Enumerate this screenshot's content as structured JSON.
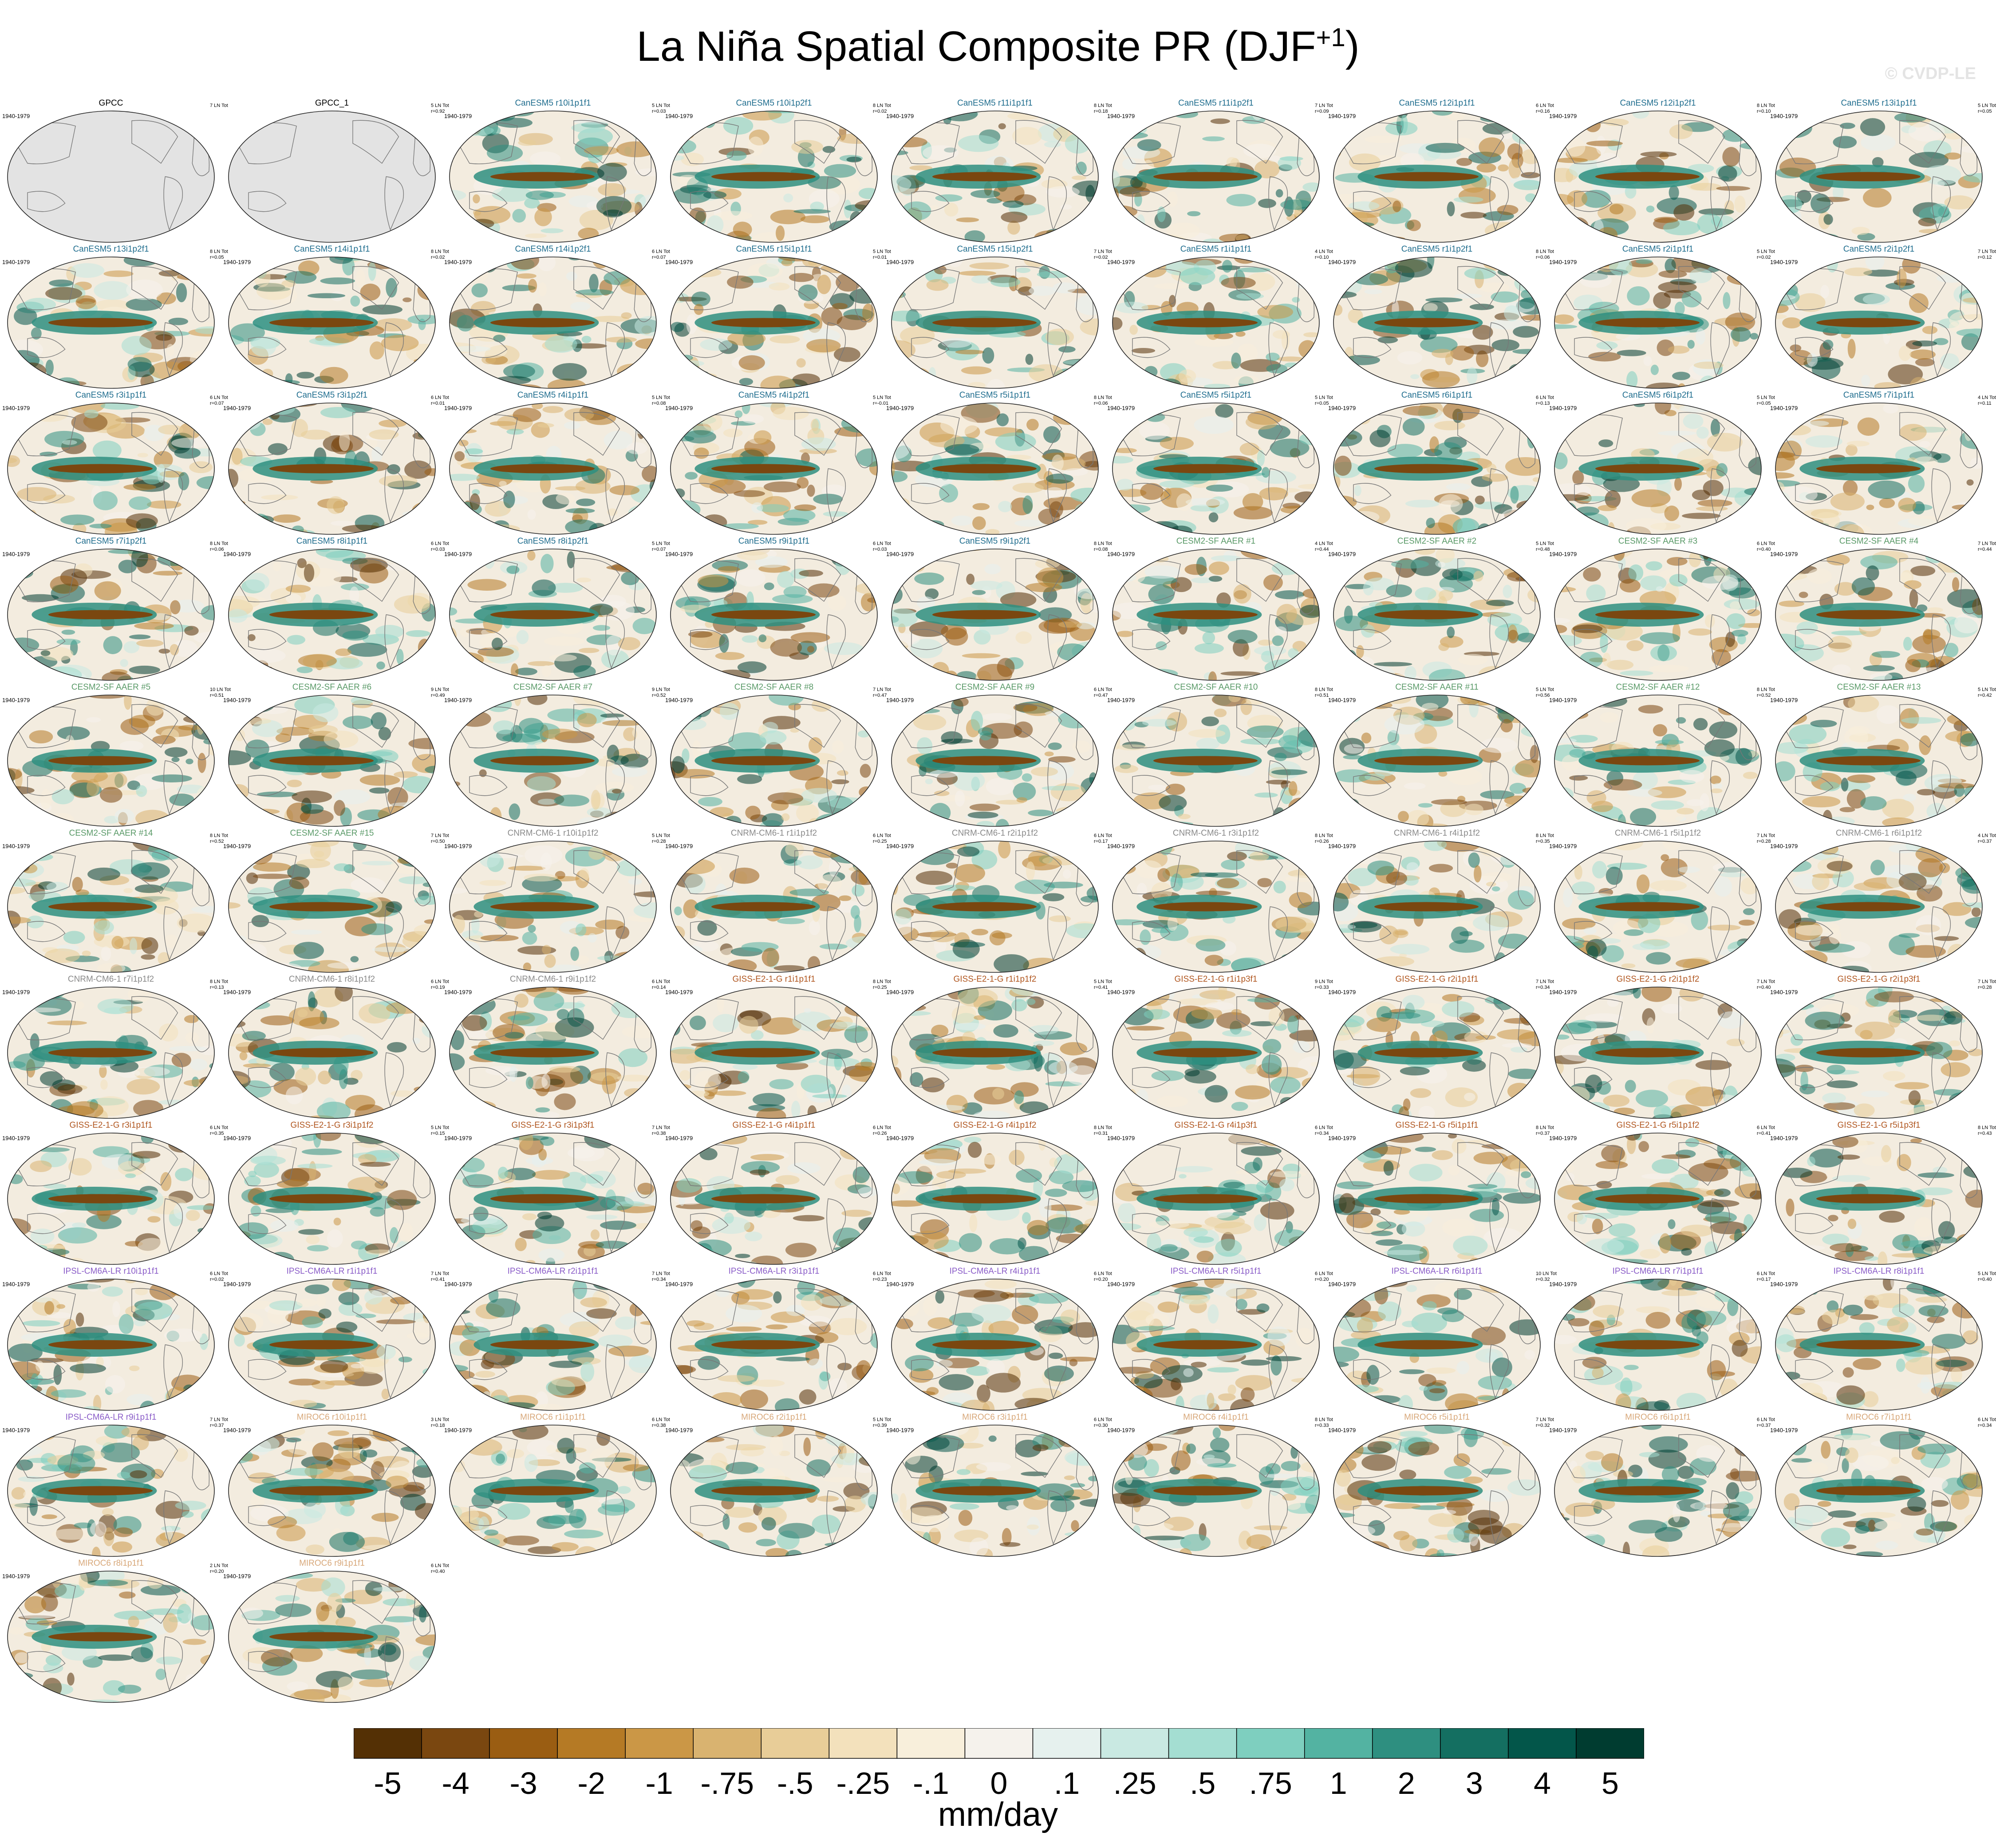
{
  "figure": {
    "title_main": "La Niña Spatial Composite PR (DJF",
    "title_sup": "+1",
    "title_end": ")",
    "watermark": "© CVDP-LE",
    "units": "mm/day"
  },
  "colors": {
    "GPCC": "#000000",
    "CanESM5": "#1f6d8e",
    "CESM2-SF AAER": "#5a9a68",
    "CNRM-CM6-1": "#8a8a8a",
    "GISS-E2-1-G": "#b0561f",
    "IPSL-CM6A-LR": "#8a5cc8",
    "MIROC6": "#d8a87a",
    "land_missing": "#e3e3e3"
  },
  "colorbar": {
    "labels": [
      "-5",
      "-4",
      "-3",
      "-2",
      "-1",
      "-.75",
      "-.5",
      "-.25",
      "-.1",
      "0",
      ".1",
      ".25",
      ".5",
      ".75",
      "1",
      "2",
      "3",
      "4",
      "5"
    ],
    "colors": [
      "#543005",
      "#7a4710",
      "#9a5d12",
      "#b57a25",
      "#cb9746",
      "#d9b370",
      "#e8cd98",
      "#f3e1bc",
      "#f8efdb",
      "#f5f2ec",
      "#e6f1ee",
      "#c9e9e2",
      "#a4ded2",
      "#7ecfbf",
      "#53b3a2",
      "#2e8f80",
      "#146f61",
      "#03564a",
      "#003c30"
    ]
  },
  "panels": [
    {
      "title": "GPCC",
      "group": "GPCC",
      "period": "1940-1979",
      "stats": [
        "7 LN Tot",
        ""
      ]
    },
    {
      "title": "GPCC_1",
      "group": "GPCC",
      "period": "",
      "stats": [
        "5 LN Tot",
        "r=0.92"
      ]
    },
    {
      "title": "CanESM5 r10i1p1f1",
      "group": "CanESM5",
      "period": "1940-1979",
      "stats": [
        "5 LN Tot",
        "r=0.03"
      ]
    },
    {
      "title": "CanESM5 r10i1p2f1",
      "group": "CanESM5",
      "period": "1940-1979",
      "stats": [
        "8 LN Tot",
        "r=0.02"
      ]
    },
    {
      "title": "CanESM5 r11i1p1f1",
      "group": "CanESM5",
      "period": "1940-1979",
      "stats": [
        "8 LN Tot",
        "r=0.18"
      ]
    },
    {
      "title": "CanESM5 r11i1p2f1",
      "group": "CanESM5",
      "period": "1940-1979",
      "stats": [
        "7 LN Tot",
        "r=0.09"
      ]
    },
    {
      "title": "CanESM5 r12i1p1f1",
      "group": "CanESM5",
      "period": "1940-1979",
      "stats": [
        "6 LN Tot",
        "r=0.16"
      ]
    },
    {
      "title": "CanESM5 r12i1p2f1",
      "group": "CanESM5",
      "period": "1940-1979",
      "stats": [
        "8 LN Tot",
        "r=0.10"
      ]
    },
    {
      "title": "CanESM5 r13i1p1f1",
      "group": "CanESM5",
      "period": "1940-1979",
      "stats": [
        "5 LN Tot",
        "r=0.05"
      ]
    },
    {
      "title": "CanESM5 r13i1p2f1",
      "group": "CanESM5",
      "period": "1940-1979",
      "stats": [
        "8 LN Tot",
        "r=0.05"
      ]
    },
    {
      "title": "CanESM5 r14i1p1f1",
      "group": "CanESM5",
      "period": "1940-1979",
      "stats": [
        "8 LN Tot",
        "r=0.02"
      ]
    },
    {
      "title": "CanESM5 r14i1p2f1",
      "group": "CanESM5",
      "period": "1940-1979",
      "stats": [
        "6 LN Tot",
        "r=0.07"
      ]
    },
    {
      "title": "CanESM5 r15i1p1f1",
      "group": "CanESM5",
      "period": "1940-1979",
      "stats": [
        "5 LN Tot",
        "r=0.01"
      ]
    },
    {
      "title": "CanESM5 r15i1p2f1",
      "group": "CanESM5",
      "period": "1940-1979",
      "stats": [
        "7 LN Tot",
        "r=0.02"
      ]
    },
    {
      "title": "CanESM5 r1i1p1f1",
      "group": "CanESM5",
      "period": "1940-1979",
      "stats": [
        "4 LN Tot",
        "r=0.10"
      ]
    },
    {
      "title": "CanESM5 r1i1p2f1",
      "group": "CanESM5",
      "period": "1940-1979",
      "stats": [
        "8 LN Tot",
        "r=0.06"
      ]
    },
    {
      "title": "CanESM5 r2i1p1f1",
      "group": "CanESM5",
      "period": "1940-1979",
      "stats": [
        "5 LN Tot",
        "r=0.02"
      ]
    },
    {
      "title": "CanESM5 r2i1p2f1",
      "group": "CanESM5",
      "period": "1940-1979",
      "stats": [
        "7 LN Tot",
        "r=0.12"
      ]
    },
    {
      "title": "CanESM5 r3i1p1f1",
      "group": "CanESM5",
      "period": "1940-1979",
      "stats": [
        "6 LN Tot",
        "r=0.07"
      ]
    },
    {
      "title": "CanESM5 r3i1p2f1",
      "group": "CanESM5",
      "period": "1940-1979",
      "stats": [
        "6 LN Tot",
        "r=0.01"
      ]
    },
    {
      "title": "CanESM5 r4i1p1f1",
      "group": "CanESM5",
      "period": "1940-1979",
      "stats": [
        "5 LN Tot",
        "r=0.08"
      ]
    },
    {
      "title": "CanESM5 r4i1p2f1",
      "group": "CanESM5",
      "period": "1940-1979",
      "stats": [
        "5 LN Tot",
        "r=-0.01"
      ]
    },
    {
      "title": "CanESM5 r5i1p1f1",
      "group": "CanESM5",
      "period": "1940-1979",
      "stats": [
        "8 LN Tot",
        "r=0.06"
      ]
    },
    {
      "title": "CanESM5 r5i1p2f1",
      "group": "CanESM5",
      "period": "1940-1979",
      "stats": [
        "5 LN Tot",
        "r=0.05"
      ]
    },
    {
      "title": "CanESM5 r6i1p1f1",
      "group": "CanESM5",
      "period": "1940-1979",
      "stats": [
        "6 LN Tot",
        "r=0.13"
      ]
    },
    {
      "title": "CanESM5 r6i1p2f1",
      "group": "CanESM5",
      "period": "1940-1979",
      "stats": [
        "5 LN Tot",
        "r=0.05"
      ]
    },
    {
      "title": "CanESM5 r7i1p1f1",
      "group": "CanESM5",
      "period": "1940-1979",
      "stats": [
        "4 LN Tot",
        "r=0.11"
      ]
    },
    {
      "title": "CanESM5 r7i1p2f1",
      "group": "CanESM5",
      "period": "1940-1979",
      "stats": [
        "8 LN Tot",
        "r=0.06"
      ]
    },
    {
      "title": "CanESM5 r8i1p1f1",
      "group": "CanESM5",
      "period": "1940-1979",
      "stats": [
        "6 LN Tot",
        "r=0.03"
      ]
    },
    {
      "title": "CanESM5 r8i1p2f1",
      "group": "CanESM5",
      "period": "1940-1979",
      "stats": [
        "5 LN Tot",
        "r=0.07"
      ]
    },
    {
      "title": "CanESM5 r9i1p1f1",
      "group": "CanESM5",
      "period": "1940-1979",
      "stats": [
        "6 LN Tot",
        "r=0.03"
      ]
    },
    {
      "title": "CanESM5 r9i1p2f1",
      "group": "CanESM5",
      "period": "1940-1979",
      "stats": [
        "8 LN Tot",
        "r=0.08"
      ]
    },
    {
      "title": "CESM2-SF AAER #1",
      "group": "CESM2-SF AAER",
      "period": "1940-1979",
      "stats": [
        "4 LN Tot",
        "r=0.44"
      ]
    },
    {
      "title": "CESM2-SF AAER #2",
      "group": "CESM2-SF AAER",
      "period": "1940-1979",
      "stats": [
        "5 LN Tot",
        "r=0.48"
      ]
    },
    {
      "title": "CESM2-SF AAER #3",
      "group": "CESM2-SF AAER",
      "period": "1940-1979",
      "stats": [
        "6 LN Tot",
        "r=0.40"
      ]
    },
    {
      "title": "CESM2-SF AAER #4",
      "group": "CESM2-SF AAER",
      "period": "1940-1979",
      "stats": [
        "7 LN Tot",
        "r=0.44"
      ]
    },
    {
      "title": "CESM2-SF AAER #5",
      "group": "CESM2-SF AAER",
      "period": "1940-1979",
      "stats": [
        "10 LN Tot",
        "r=0.51"
      ]
    },
    {
      "title": "CESM2-SF AAER #6",
      "group": "CESM2-SF AAER",
      "period": "1940-1979",
      "stats": [
        "9 LN Tot",
        "r=0.49"
      ]
    },
    {
      "title": "CESM2-SF AAER #7",
      "group": "CESM2-SF AAER",
      "period": "1940-1979",
      "stats": [
        "9 LN Tot",
        "r=0.52"
      ]
    },
    {
      "title": "CESM2-SF AAER #8",
      "group": "CESM2-SF AAER",
      "period": "1940-1979",
      "stats": [
        "7 LN Tot",
        "r=0.47"
      ]
    },
    {
      "title": "CESM2-SF AAER #9",
      "group": "CESM2-SF AAER",
      "period": "1940-1979",
      "stats": [
        "6 LN Tot",
        "r=0.47"
      ]
    },
    {
      "title": "CESM2-SF AAER #10",
      "group": "CESM2-SF AAER",
      "period": "1940-1979",
      "stats": [
        "8 LN Tot",
        "r=0.51"
      ]
    },
    {
      "title": "CESM2-SF AAER #11",
      "group": "CESM2-SF AAER",
      "period": "1940-1979",
      "stats": [
        "5 LN Tot",
        "r=0.56"
      ]
    },
    {
      "title": "CESM2-SF AAER #12",
      "group": "CESM2-SF AAER",
      "period": "1940-1979",
      "stats": [
        "8 LN Tot",
        "r=0.52"
      ]
    },
    {
      "title": "CESM2-SF AAER #13",
      "group": "CESM2-SF AAER",
      "period": "1940-1979",
      "stats": [
        "5 LN Tot",
        "r=0.42"
      ]
    },
    {
      "title": "CESM2-SF AAER #14",
      "group": "CESM2-SF AAER",
      "period": "1940-1979",
      "stats": [
        "8 LN Tot",
        "r=0.52"
      ]
    },
    {
      "title": "CESM2-SF AAER #15",
      "group": "CESM2-SF AAER",
      "period": "1940-1979",
      "stats": [
        "7 LN Tot",
        "r=0.50"
      ]
    },
    {
      "title": "CNRM-CM6-1 r10i1p1f2",
      "group": "CNRM-CM6-1",
      "period": "1940-1979",
      "stats": [
        "5 LN Tot",
        "r=0.28"
      ]
    },
    {
      "title": "CNRM-CM6-1 r1i1p1f2",
      "group": "CNRM-CM6-1",
      "period": "1940-1979",
      "stats": [
        "6 LN Tot",
        "r=0.25"
      ]
    },
    {
      "title": "CNRM-CM6-1 r2i1p1f2",
      "group": "CNRM-CM6-1",
      "period": "1940-1979",
      "stats": [
        "6 LN Tot",
        "r=0.17"
      ]
    },
    {
      "title": "CNRM-CM6-1 r3i1p1f2",
      "group": "CNRM-CM6-1",
      "period": "1940-1979",
      "stats": [
        "8 LN Tot",
        "r=0.26"
      ]
    },
    {
      "title": "CNRM-CM6-1 r4i1p1f2",
      "group": "CNRM-CM6-1",
      "period": "1940-1979",
      "stats": [
        "8 LN Tot",
        "r=0.35"
      ]
    },
    {
      "title": "CNRM-CM6-1 r5i1p1f2",
      "group": "CNRM-CM6-1",
      "period": "1940-1979",
      "stats": [
        "7 LN Tot",
        "r=0.28"
      ]
    },
    {
      "title": "CNRM-CM6-1 r6i1p1f2",
      "group": "CNRM-CM6-1",
      "period": "1940-1979",
      "stats": [
        "4 LN Tot",
        "r=0.37"
      ]
    },
    {
      "title": "CNRM-CM6-1 r7i1p1f2",
      "group": "CNRM-CM6-1",
      "period": "1940-1979",
      "stats": [
        "8 LN Tot",
        "r=0.13"
      ]
    },
    {
      "title": "CNRM-CM6-1 r8i1p1f2",
      "group": "CNRM-CM6-1",
      "period": "1940-1979",
      "stats": [
        "6 LN Tot",
        "r=0.19"
      ]
    },
    {
      "title": "CNRM-CM6-1 r9i1p1f2",
      "group": "CNRM-CM6-1",
      "period": "1940-1979",
      "stats": [
        "6 LN Tot",
        "r=0.14"
      ]
    },
    {
      "title": "GISS-E2-1-G r1i1p1f1",
      "group": "GISS-E2-1-G",
      "period": "1940-1979",
      "stats": [
        "8 LN Tot",
        "r=0.25"
      ]
    },
    {
      "title": "GISS-E2-1-G r1i1p1f2",
      "group": "GISS-E2-1-G",
      "period": "1940-1979",
      "stats": [
        "5 LN Tot",
        "r=0.41"
      ]
    },
    {
      "title": "GISS-E2-1-G r1i1p3f1",
      "group": "GISS-E2-1-G",
      "period": "1940-1979",
      "stats": [
        "9 LN Tot",
        "r=0.33"
      ]
    },
    {
      "title": "GISS-E2-1-G r2i1p1f1",
      "group": "GISS-E2-1-G",
      "period": "1940-1979",
      "stats": [
        "7 LN Tot",
        "r=0.34"
      ]
    },
    {
      "title": "GISS-E2-1-G r2i1p1f2",
      "group": "GISS-E2-1-G",
      "period": "1940-1979",
      "stats": [
        "7 LN Tot",
        "r=0.40"
      ]
    },
    {
      "title": "GISS-E2-1-G r2i1p3f1",
      "group": "GISS-E2-1-G",
      "period": "1940-1979",
      "stats": [
        "7 LN Tot",
        "r=0.28"
      ]
    },
    {
      "title": "GISS-E2-1-G r3i1p1f1",
      "group": "GISS-E2-1-G",
      "period": "1940-1979",
      "stats": [
        "6 LN Tot",
        "r=0.35"
      ]
    },
    {
      "title": "GISS-E2-1-G r3i1p1f2",
      "group": "GISS-E2-1-G",
      "period": "1940-1979",
      "stats": [
        "5 LN Tot",
        "r=0.15"
      ]
    },
    {
      "title": "GISS-E2-1-G r3i1p3f1",
      "group": "GISS-E2-1-G",
      "period": "1940-1979",
      "stats": [
        "7 LN Tot",
        "r=0.38"
      ]
    },
    {
      "title": "GISS-E2-1-G r4i1p1f1",
      "group": "GISS-E2-1-G",
      "period": "1940-1979",
      "stats": [
        "6 LN Tot",
        "r=0.26"
      ]
    },
    {
      "title": "GISS-E2-1-G r4i1p1f2",
      "group": "GISS-E2-1-G",
      "period": "1940-1979",
      "stats": [
        "8 LN Tot",
        "r=0.31"
      ]
    },
    {
      "title": "GISS-E2-1-G r4i1p3f1",
      "group": "GISS-E2-1-G",
      "period": "1940-1979",
      "stats": [
        "6 LN Tot",
        "r=0.34"
      ]
    },
    {
      "title": "GISS-E2-1-G r5i1p1f1",
      "group": "GISS-E2-1-G",
      "period": "1940-1979",
      "stats": [
        "8 LN Tot",
        "r=0.37"
      ]
    },
    {
      "title": "GISS-E2-1-G r5i1p1f2",
      "group": "GISS-E2-1-G",
      "period": "1940-1979",
      "stats": [
        "6 LN Tot",
        "r=0.41"
      ]
    },
    {
      "title": "GISS-E2-1-G r5i1p3f1",
      "group": "GISS-E2-1-G",
      "period": "1940-1979",
      "stats": [
        "8 LN Tot",
        "r=0.43"
      ]
    },
    {
      "title": "IPSL-CM6A-LR r10i1p1f1",
      "group": "IPSL-CM6A-LR",
      "period": "1940-1979",
      "stats": [
        "6 LN Tot",
        "r=0.02"
      ]
    },
    {
      "title": "IPSL-CM6A-LR r1i1p1f1",
      "group": "IPSL-CM6A-LR",
      "period": "1940-1979",
      "stats": [
        "7 LN Tot",
        "r=0.41"
      ]
    },
    {
      "title": "IPSL-CM6A-LR r2i1p1f1",
      "group": "IPSL-CM6A-LR",
      "period": "1940-1979",
      "stats": [
        "7 LN Tot",
        "r=0.34"
      ]
    },
    {
      "title": "IPSL-CM6A-LR r3i1p1f1",
      "group": "IPSL-CM6A-LR",
      "period": "1940-1979",
      "stats": [
        "6 LN Tot",
        "r=0.23"
      ]
    },
    {
      "title": "IPSL-CM6A-LR r4i1p1f1",
      "group": "IPSL-CM6A-LR",
      "period": "1940-1979",
      "stats": [
        "6 LN Tot",
        "r=0.20"
      ]
    },
    {
      "title": "IPSL-CM6A-LR r5i1p1f1",
      "group": "IPSL-CM6A-LR",
      "period": "1940-1979",
      "stats": [
        "6 LN Tot",
        "r=0.20"
      ]
    },
    {
      "title": "IPSL-CM6A-LR r6i1p1f1",
      "group": "IPSL-CM6A-LR",
      "period": "1940-1979",
      "stats": [
        "10 LN Tot",
        "r=0.32"
      ]
    },
    {
      "title": "IPSL-CM6A-LR r7i1p1f1",
      "group": "IPSL-CM6A-LR",
      "period": "1940-1979",
      "stats": [
        "6 LN Tot",
        "r=0.17"
      ]
    },
    {
      "title": "IPSL-CM6A-LR r8i1p1f1",
      "group": "IPSL-CM6A-LR",
      "period": "1940-1979",
      "stats": [
        "5 LN Tot",
        "r=0.40"
      ]
    },
    {
      "title": "IPSL-CM6A-LR r9i1p1f1",
      "group": "IPSL-CM6A-LR",
      "period": "1940-1979",
      "stats": [
        "7 LN Tot",
        "r=0.37"
      ]
    },
    {
      "title": "MIROC6 r10i1p1f1",
      "group": "MIROC6",
      "period": "1940-1979",
      "stats": [
        "3 LN Tot",
        "r=0.18"
      ]
    },
    {
      "title": "MIROC6 r1i1p1f1",
      "group": "MIROC6",
      "period": "1940-1979",
      "stats": [
        "6 LN Tot",
        "r=0.38"
      ]
    },
    {
      "title": "MIROC6 r2i1p1f1",
      "group": "MIROC6",
      "period": "1940-1979",
      "stats": [
        "5 LN Tot",
        "r=0.39"
      ]
    },
    {
      "title": "MIROC6 r3i1p1f1",
      "group": "MIROC6",
      "period": "1940-1979",
      "stats": [
        "6 LN Tot",
        "r=0.30"
      ]
    },
    {
      "title": "MIROC6 r4i1p1f1",
      "group": "MIROC6",
      "period": "1940-1979",
      "stats": [
        "8 LN Tot",
        "r=0.33"
      ]
    },
    {
      "title": "MIROC6 r5i1p1f1",
      "group": "MIROC6",
      "period": "1940-1979",
      "stats": [
        "7 LN Tot",
        "r=0.32"
      ]
    },
    {
      "title": "MIROC6 r6i1p1f1",
      "group": "MIROC6",
      "period": "1940-1979",
      "stats": [
        "6 LN Tot",
        "r=0.37"
      ]
    },
    {
      "title": "MIROC6 r7i1p1f1",
      "group": "MIROC6",
      "period": "1940-1979",
      "stats": [
        "6 LN Tot",
        "r=0.34"
      ]
    },
    {
      "title": "MIROC6 r8i1p1f1",
      "group": "MIROC6",
      "period": "1940-1979",
      "stats": [
        "2 LN Tot",
        "r=0.20"
      ]
    },
    {
      "title": "MIROC6 r9i1p1f1",
      "group": "MIROC6",
      "period": "1940-1979",
      "stats": [
        "6 LN Tot",
        "r=0.40"
      ]
    }
  ]
}
